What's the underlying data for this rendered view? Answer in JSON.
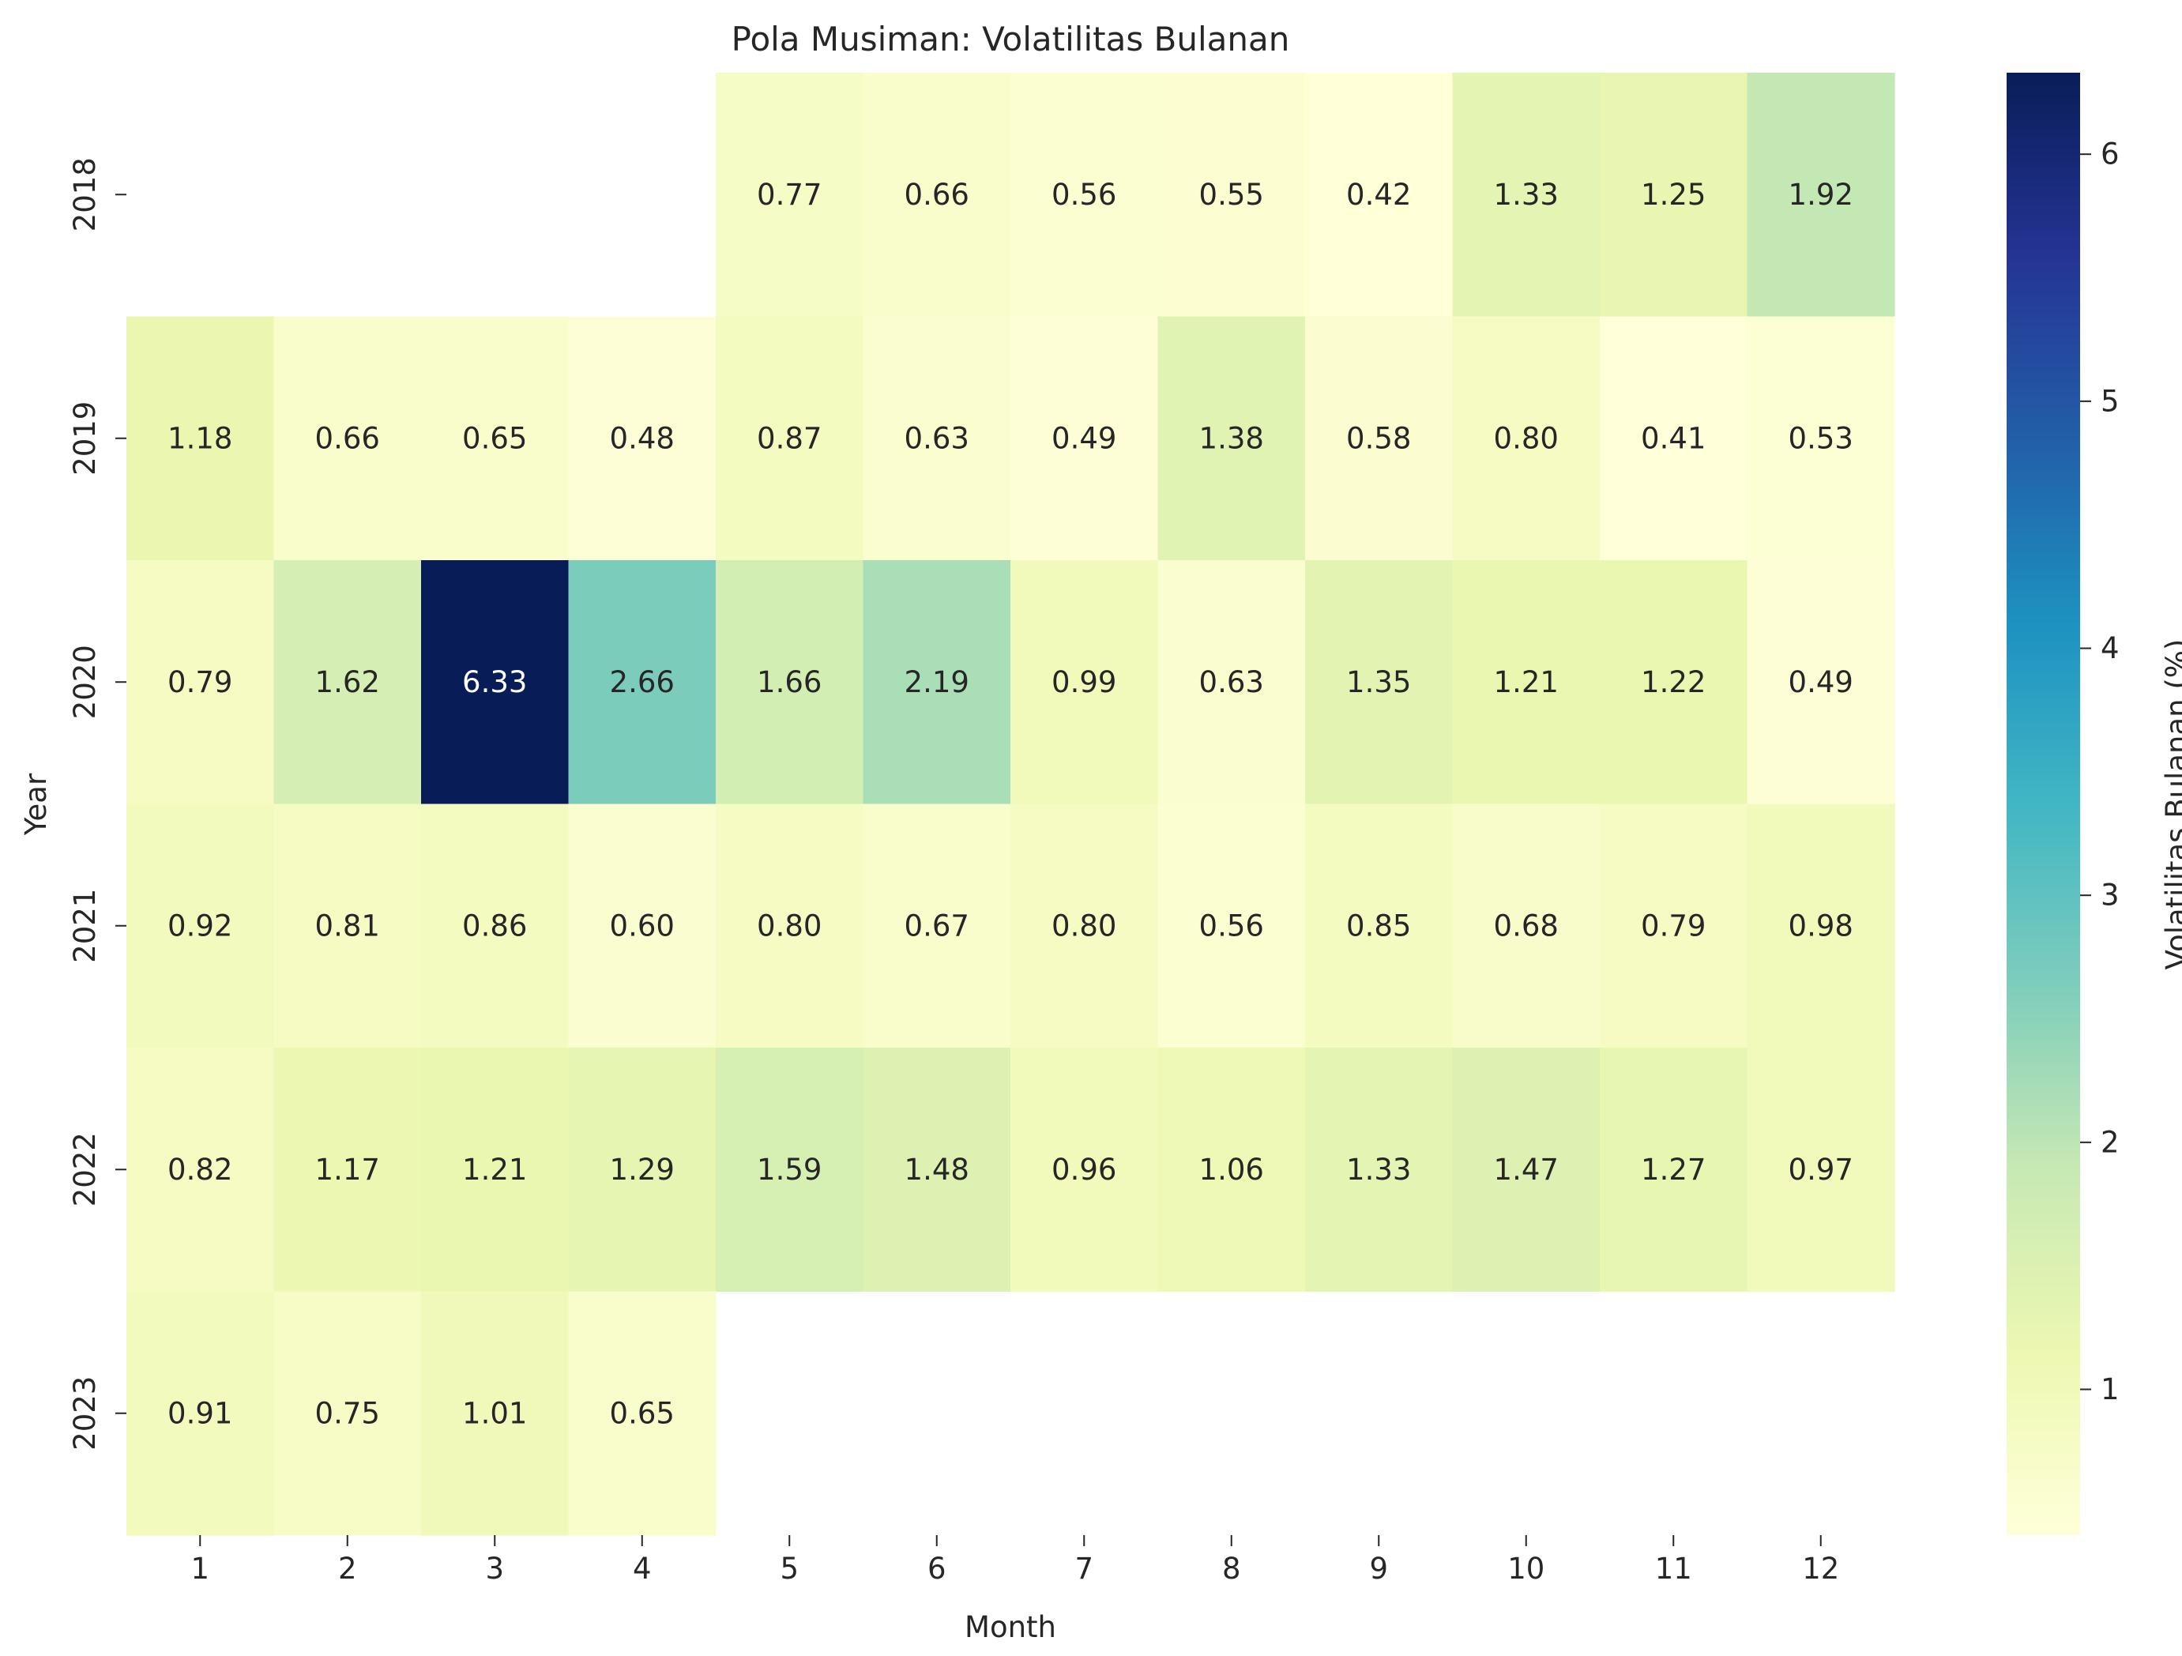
{
  "chart_data": {
    "type": "heatmap",
    "title": "Pola Musiman: Volatilitas Bulanan",
    "xlabel": "Month",
    "ylabel": "Year",
    "colorbar_label": "Volatilitas Bulanan (%)",
    "colormap": "YlGnBu",
    "x": [
      "1",
      "2",
      "3",
      "4",
      "5",
      "6",
      "7",
      "8",
      "9",
      "10",
      "11",
      "12"
    ],
    "y": [
      "2018",
      "2019",
      "2020",
      "2021",
      "2022",
      "2023"
    ],
    "values": [
      [
        null,
        null,
        null,
        null,
        0.77,
        0.66,
        0.56,
        0.55,
        0.42,
        1.33,
        1.25,
        1.92
      ],
      [
        1.18,
        0.66,
        0.65,
        0.48,
        0.87,
        0.63,
        0.49,
        1.38,
        0.58,
        0.8,
        0.41,
        0.53
      ],
      [
        0.79,
        1.62,
        6.33,
        2.66,
        1.66,
        2.19,
        0.99,
        0.63,
        1.35,
        1.21,
        1.22,
        0.49
      ],
      [
        0.92,
        0.81,
        0.86,
        0.6,
        0.8,
        0.67,
        0.8,
        0.56,
        0.85,
        0.68,
        0.79,
        0.98
      ],
      [
        0.82,
        1.17,
        1.21,
        1.29,
        1.59,
        1.48,
        0.96,
        1.06,
        1.33,
        1.47,
        1.27,
        0.97
      ],
      [
        0.91,
        0.75,
        1.01,
        0.65,
        null,
        null,
        null,
        null,
        null,
        null,
        null,
        null
      ]
    ],
    "value_format": "0.00",
    "color_range": [
      0.41,
      6.33
    ],
    "colorbar_ticks": [
      "1",
      "2",
      "3",
      "4",
      "5",
      "6"
    ],
    "colorbar_tick_values": [
      1,
      2,
      3,
      4,
      5,
      6
    ],
    "legend": "colorbar-right",
    "grid": false
  }
}
